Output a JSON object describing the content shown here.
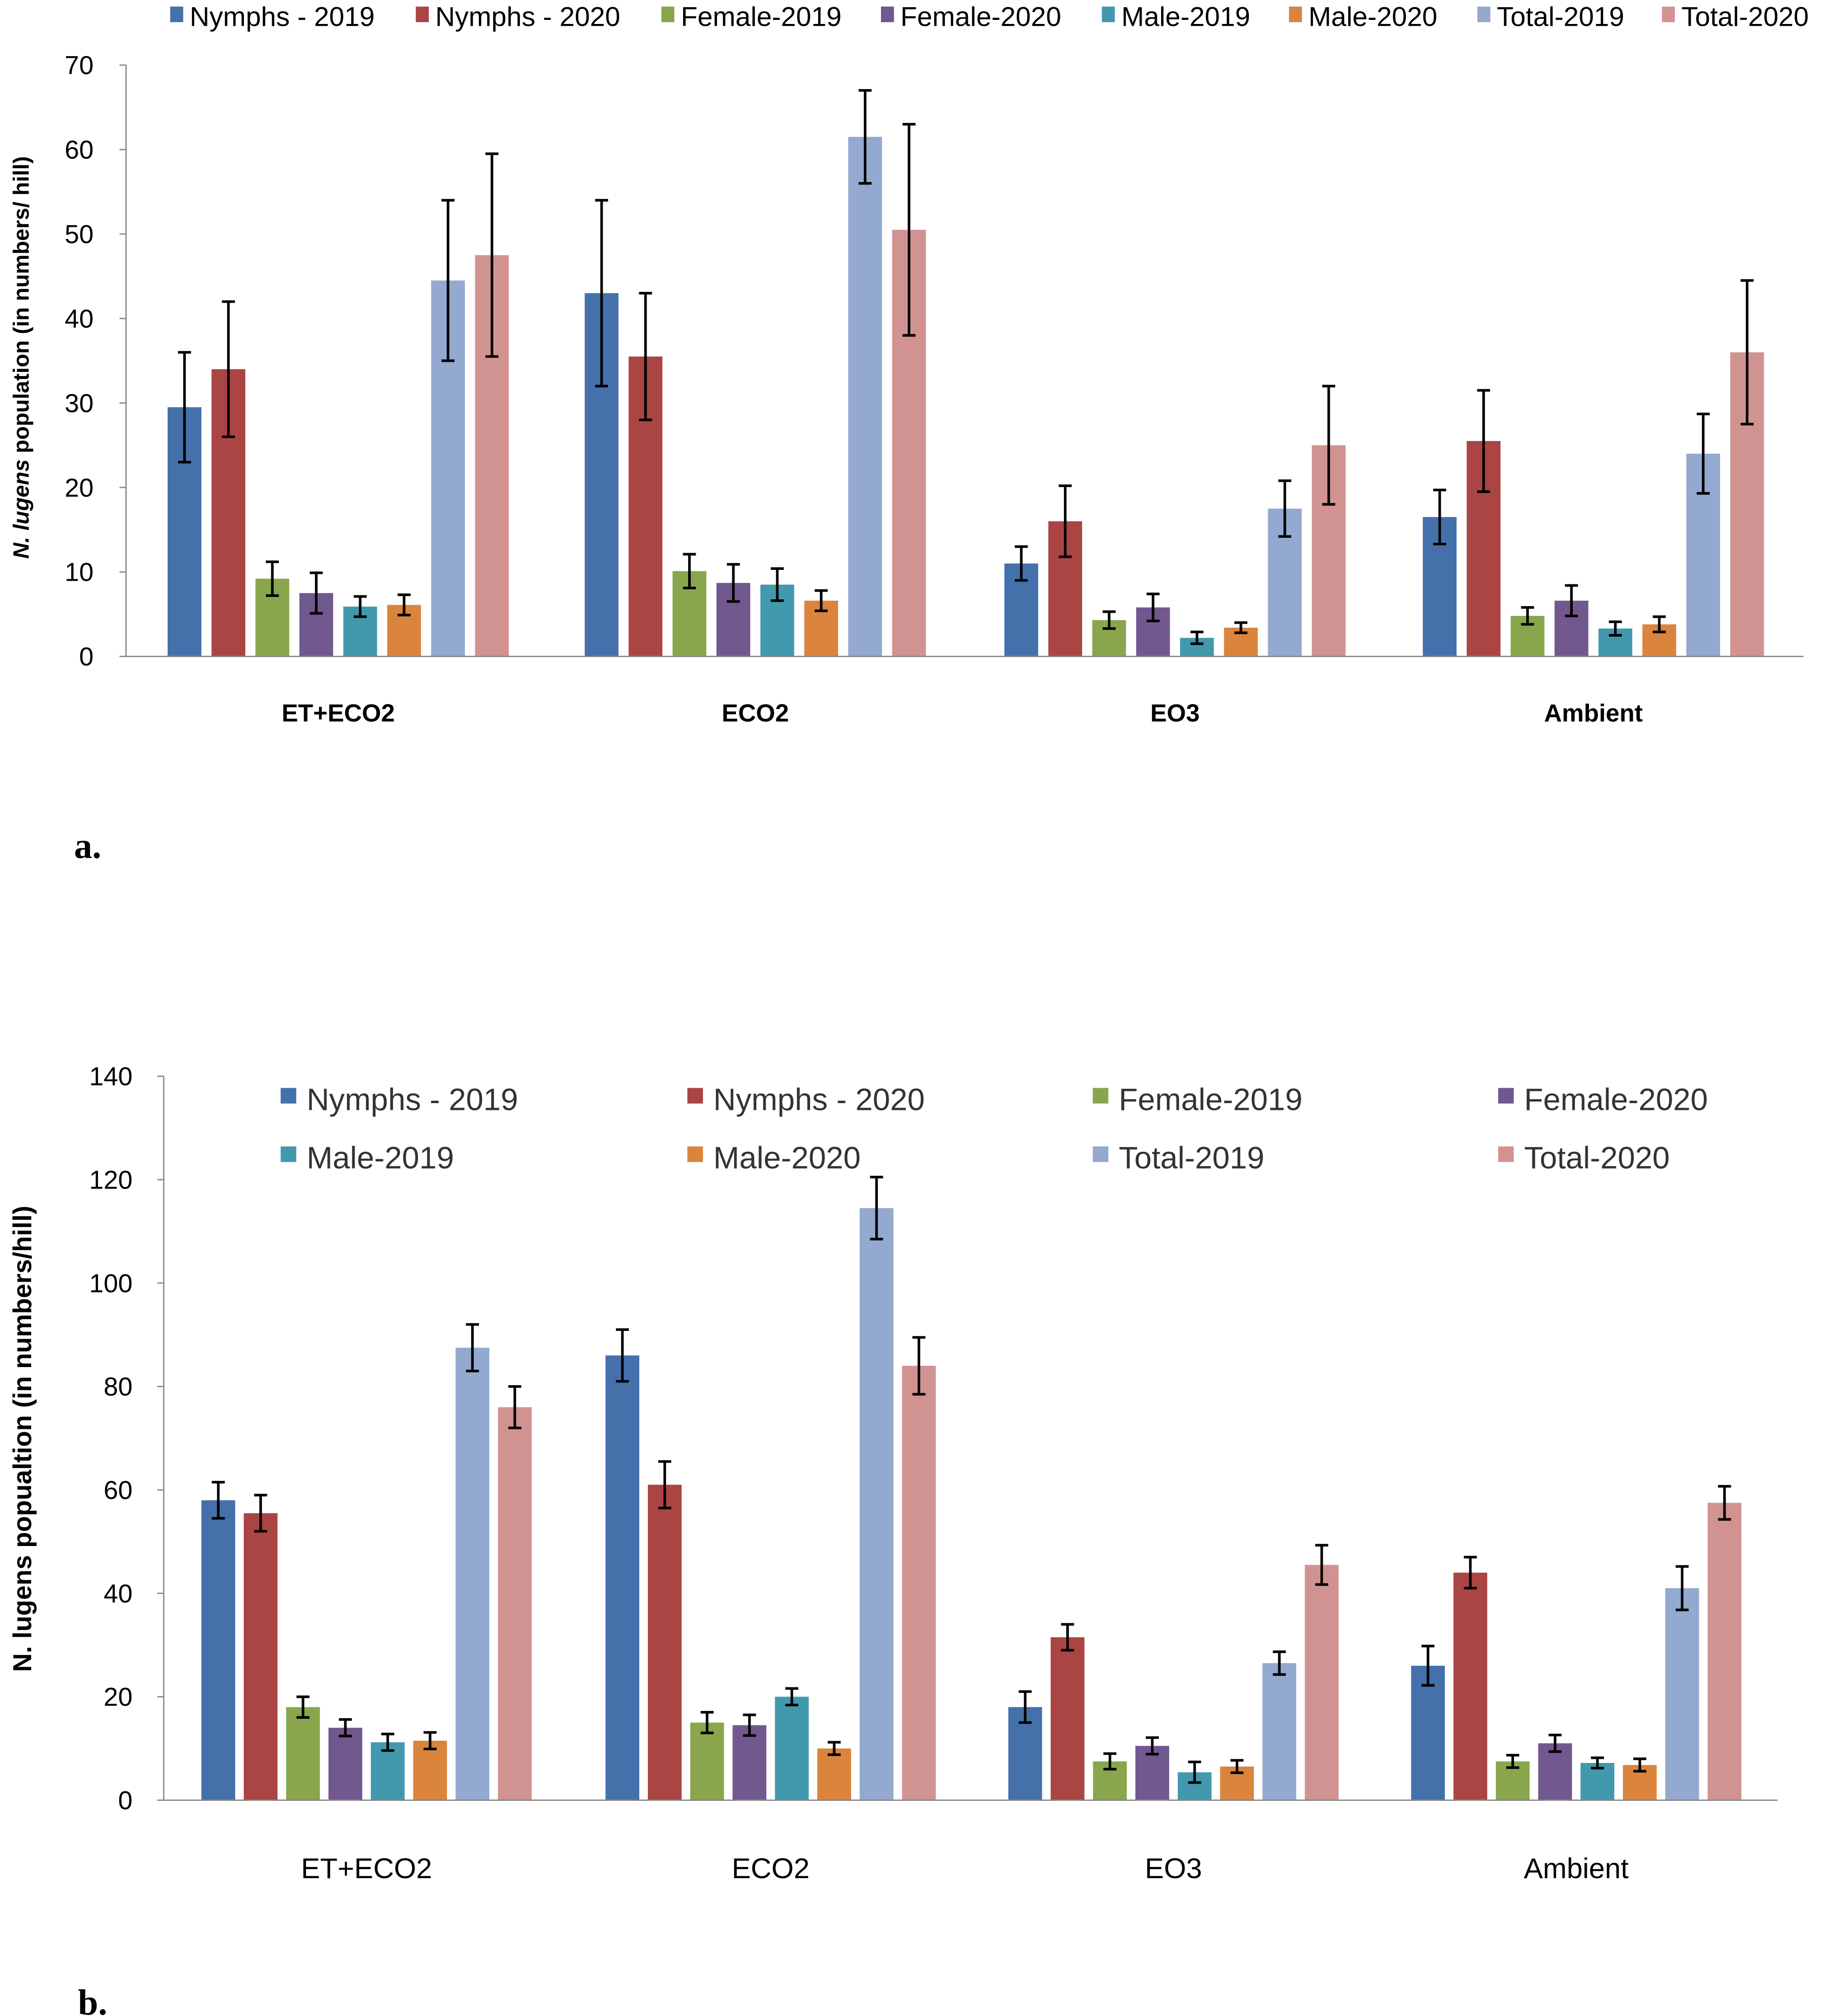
{
  "figure": {
    "panels": [
      {
        "panel_label": "a.",
        "ylabel_italic": "N. lugens",
        "ylabel_rest": " population (in numbers/ hill)",
        "y_ticks": [
          "0",
          "10",
          "20",
          "30",
          "40",
          "50",
          "60",
          "70"
        ],
        "legend": [
          "Nymphs - 2019",
          "Nymphs - 2020",
          "Female-2019",
          "Female-2020",
          "Male-2019",
          "Male-2020",
          "Total-2019",
          "Total-2020"
        ]
      },
      {
        "panel_label": "b.",
        "ylabel": "N. lugens popualtion (in numbers/hill)",
        "y_ticks": [
          "0",
          "20",
          "40",
          "60",
          "80",
          "100",
          "120",
          "140"
        ],
        "legend": [
          "Nymphs - 2019",
          "Nymphs - 2020",
          "Female-2019",
          "Female-2020",
          "Male-2019",
          "Male-2020",
          "Total-2019",
          "Total-2020"
        ]
      }
    ]
  },
  "colors": {
    "series": [
      "#4571ab",
      "#aa4544",
      "#89a64d",
      "#71588f",
      "#4299ae",
      "#db843d",
      "#93a9cf",
      "#d19392"
    ],
    "axis": "#888888",
    "errorbar": "#000000"
  },
  "chart_data": [
    {
      "type": "bar",
      "title": "",
      "xlabel": "",
      "ylabel": "N. lugens population (in numbers/ hill)",
      "ylim": [
        0,
        70
      ],
      "categories": [
        "ET+ECO2",
        "ECO2",
        "EO3",
        "Ambient"
      ],
      "series": [
        {
          "name": "Nymphs - 2019",
          "values": [
            29.5,
            43,
            11,
            16.5
          ],
          "errors": [
            6.5,
            11,
            2,
            3.2
          ]
        },
        {
          "name": "Nymphs - 2020",
          "values": [
            34,
            35.5,
            16,
            25.5
          ],
          "errors": [
            8,
            7.5,
            4.2,
            6
          ]
        },
        {
          "name": "Female-2019",
          "values": [
            9.2,
            10.1,
            4.3,
            4.8
          ],
          "errors": [
            2,
            2,
            1,
            1
          ]
        },
        {
          "name": "Female-2020",
          "values": [
            7.5,
            8.7,
            5.8,
            6.6
          ],
          "errors": [
            2.4,
            2.2,
            1.6,
            1.8
          ]
        },
        {
          "name": "Male-2019",
          "values": [
            5.9,
            8.5,
            2.2,
            3.3
          ],
          "errors": [
            1.2,
            1.9,
            0.7,
            0.8
          ]
        },
        {
          "name": "Male-2020",
          "values": [
            6.1,
            6.6,
            3.4,
            3.8
          ],
          "errors": [
            1.2,
            1.2,
            0.6,
            0.9
          ]
        },
        {
          "name": "Total-2019",
          "values": [
            44.5,
            61.5,
            17.5,
            24
          ],
          "errors": [
            9.5,
            5.5,
            3.3,
            4.7
          ]
        },
        {
          "name": "Total-2020",
          "values": [
            47.5,
            50.5,
            25,
            36
          ],
          "errors": [
            12,
            12.5,
            7,
            8.5
          ]
        }
      ]
    },
    {
      "type": "bar",
      "title": "",
      "xlabel": "",
      "ylabel": "N. lugens popualtion (in numbers/hill)",
      "ylim": [
        0,
        140
      ],
      "categories": [
        "ET+ECO2",
        "ECO2",
        "EO3",
        "Ambient"
      ],
      "series": [
        {
          "name": "Nymphs - 2019",
          "values": [
            58,
            86,
            18,
            26
          ],
          "errors": [
            3.5,
            5,
            3,
            3.8
          ]
        },
        {
          "name": "Nymphs - 2020",
          "values": [
            55.5,
            61,
            31.5,
            44
          ],
          "errors": [
            3.5,
            4.5,
            2.5,
            3
          ]
        },
        {
          "name": "Female-2019",
          "values": [
            18,
            15,
            7.5,
            7.5
          ],
          "errors": [
            2,
            2,
            1.5,
            1.2
          ]
        },
        {
          "name": "Female-2020",
          "values": [
            14,
            14.5,
            10.5,
            11
          ],
          "errors": [
            1.6,
            2,
            1.6,
            1.6
          ]
        },
        {
          "name": "Male-2019",
          "values": [
            11.2,
            20,
            5.4,
            7.2
          ],
          "errors": [
            1.6,
            1.6,
            2,
            1
          ]
        },
        {
          "name": "Male-2020",
          "values": [
            11.5,
            10,
            6.5,
            6.8
          ],
          "errors": [
            1.6,
            1.2,
            1.2,
            1.2
          ]
        },
        {
          "name": "Total-2019",
          "values": [
            87.5,
            114.5,
            26.5,
            41
          ],
          "errors": [
            4.5,
            6,
            2.2,
            4.2
          ]
        },
        {
          "name": "Total-2020",
          "values": [
            76,
            84,
            45.5,
            57.5
          ],
          "errors": [
            4,
            5.5,
            3.8,
            3.2
          ]
        }
      ]
    }
  ]
}
